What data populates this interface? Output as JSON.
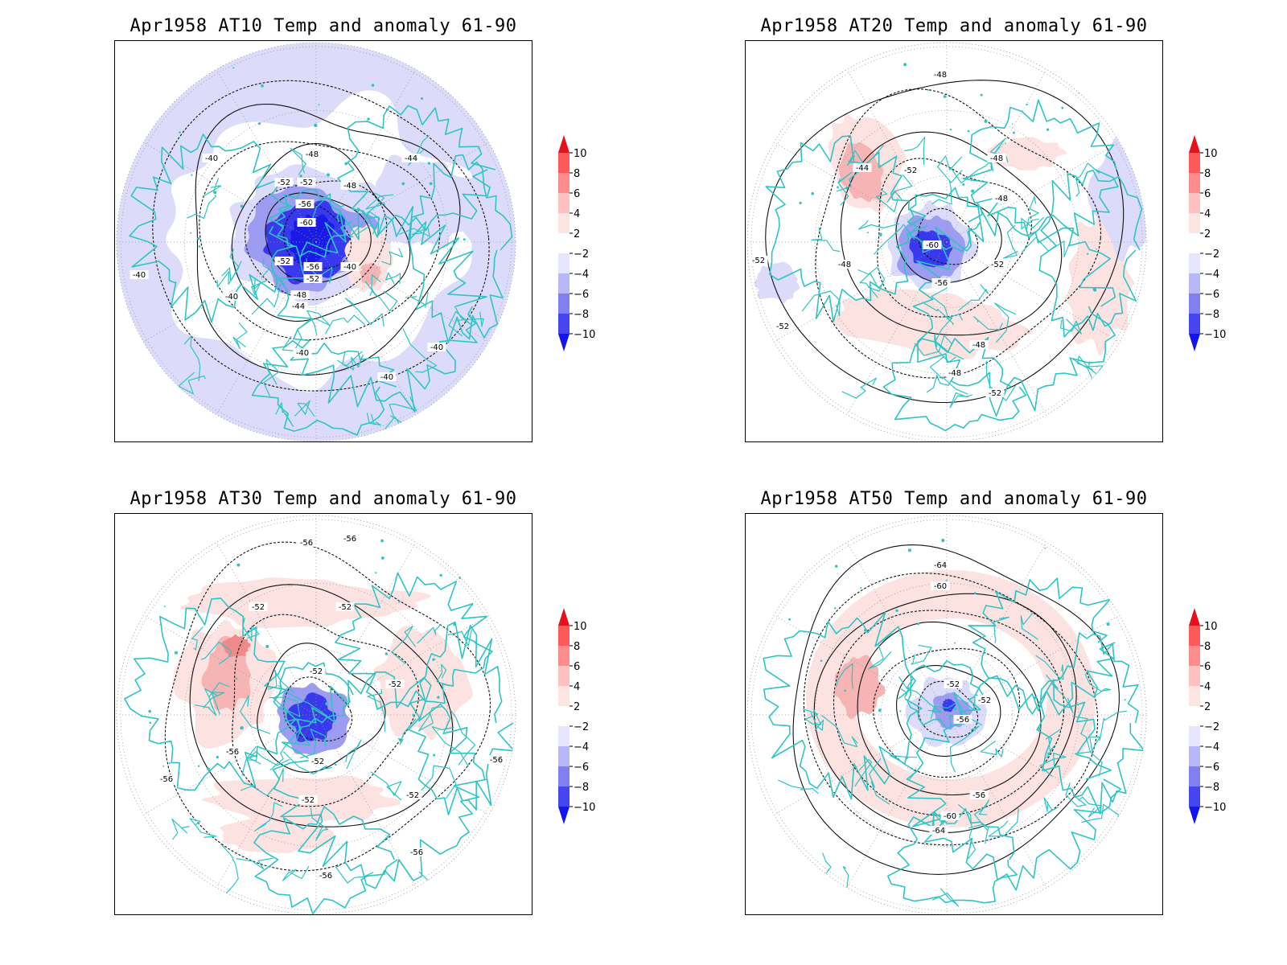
{
  "figure": {
    "panels": [
      {
        "id": "at10",
        "title": "Apr1958 AT10 Temp and anomaly 61-90",
        "contour_labels": [
          "-40",
          "-48",
          "-44",
          "-52",
          "-52",
          "-48",
          "-56",
          "-60",
          "-52",
          "-56",
          "-52",
          "-48",
          "-44",
          "-40",
          "-40",
          "-40",
          "-40",
          "-40",
          "-40"
        ],
        "anomaly_pattern": "strong-negative"
      },
      {
        "id": "at20",
        "title": "Apr1958 AT20 Temp and anomaly 61-90",
        "contour_labels": [
          "-48",
          "-44",
          "-52",
          "-48",
          "-48",
          "-52",
          "-60",
          "-52",
          "-56",
          "-48",
          "-52",
          "-48",
          "-48",
          "-52"
        ],
        "anomaly_pattern": "mixed"
      },
      {
        "id": "at30",
        "title": "Apr1958 AT30 Temp and anomaly 61-90",
        "contour_labels": [
          "-56",
          "-56",
          "-52",
          "-52",
          "-52",
          "-52",
          "-56",
          "-52",
          "-56",
          "-52",
          "-52",
          "-56",
          "-56",
          "-56"
        ],
        "anomaly_pattern": "mixed-positive"
      },
      {
        "id": "at50",
        "title": "Apr1958 AT50 Temp and anomaly 61-90",
        "contour_labels": [
          "-64",
          "-60",
          "-52",
          "-52",
          "-56",
          "-56",
          "-60",
          "-64"
        ],
        "anomaly_pattern": "ring-positive"
      }
    ],
    "colorbar": {
      "ticks": [
        "10",
        "8",
        "6",
        "4",
        "2",
        "−2",
        "−4",
        "−6",
        "−8",
        "−10"
      ],
      "colors": [
        "#e8101a",
        "#ff5a5a",
        "#ff8c8c",
        "#ffc0c0",
        "#ffe4e4",
        "#ffffff",
        "#e6e6ff",
        "#b8b8f8",
        "#8080f0",
        "#4646f0",
        "#1414f0"
      ]
    },
    "colors": {
      "coastline": "#2ec4c4",
      "neg_light": "#dcdcfa",
      "neg_mid": "#9c9cf2",
      "neg_strong": "#3838ee",
      "pos_light": "#fde2e2",
      "pos_mid": "#f7b4b4",
      "pos_strong": "#f08a8a"
    }
  }
}
